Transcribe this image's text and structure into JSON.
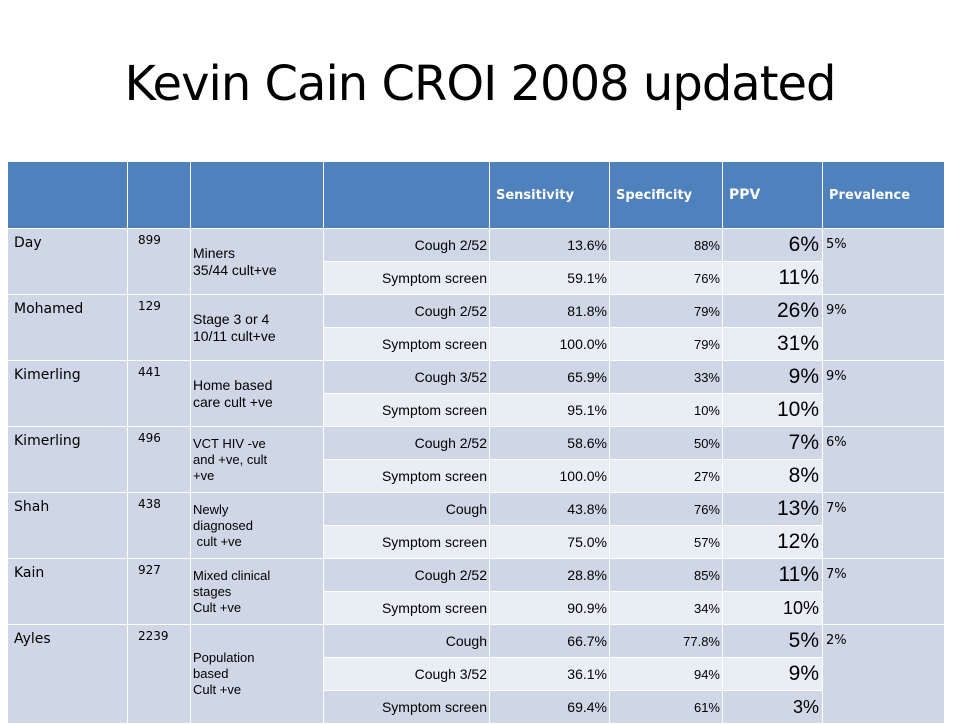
{
  "title": "Kevin Cain CROI 2008 updated",
  "headers": {
    "sensitivity": "Sensitivity",
    "specificity": "Specificity",
    "ppv": "PPV",
    "prevalence": "Prevalence"
  },
  "studies": [
    {
      "name": "Day",
      "n": "899",
      "population": [
        "Miners",
        "35/44 cult+ve"
      ],
      "prevalence": "5%",
      "rows": [
        {
          "test": "Cough 2/52",
          "sensitivity": "13.6%",
          "specificity": "88%",
          "ppv": "6%"
        },
        {
          "test": "Symptom screen",
          "sensitivity": "59.1%",
          "specificity": "76%",
          "ppv": "11%"
        }
      ]
    },
    {
      "name": "Mohamed",
      "n": "129",
      "population": [
        "Stage 3 or 4",
        "10/11 cult+ve"
      ],
      "prevalence": "9%",
      "rows": [
        {
          "test": "Cough 2/52",
          "sensitivity": "81.8%",
          "specificity": "79%",
          "ppv": "26%"
        },
        {
          "test": "Symptom screen",
          "sensitivity": "100.0%",
          "specificity": "79%",
          "ppv": "31%"
        }
      ]
    },
    {
      "name": "Kimerling",
      "n": "441",
      "population": [
        "Home based",
        "care cult +ve"
      ],
      "prevalence": "9%",
      "rows": [
        {
          "test": "Cough 3/52",
          "sensitivity": "65.9%",
          "specificity": "33%",
          "ppv": "9%"
        },
        {
          "test": "Symptom screen",
          "sensitivity": "95.1%",
          "specificity": "10%",
          "ppv": "10%"
        }
      ]
    },
    {
      "name": "Kimerling",
      "n": "496",
      "population": [
        "VCT HIV -ve",
        "and +ve, cult",
        "+ve"
      ],
      "prevalence": "6%",
      "rows": [
        {
          "test": "Cough 2/52",
          "sensitivity": "58.6%",
          "specificity": "50%",
          "ppv": "7%"
        },
        {
          "test": "Symptom screen",
          "sensitivity": "100.0%",
          "specificity": "27%",
          "ppv": "8%"
        }
      ]
    },
    {
      "name": "Shah",
      "n": "438",
      "population": [
        "Newly",
        "diagnosed",
        " cult +ve"
      ],
      "prevalence": "7%",
      "rows": [
        {
          "test": "Cough",
          "sensitivity": "43.8%",
          "specificity": "76%",
          "ppv": "13%"
        },
        {
          "test": "Symptom screen",
          "sensitivity": "75.0%",
          "specificity": "57%",
          "ppv": "12%"
        }
      ]
    },
    {
      "name": "Kain",
      "n": "927",
      "population": [
        "Mixed clinical",
        "stages",
        "Cult +ve"
      ],
      "prevalence": "7%",
      "rows": [
        {
          "test": "Cough 2/52",
          "sensitivity": "28.8%",
          "specificity": "85%",
          "ppv": "11%"
        },
        {
          "test": "Symptom screen",
          "sensitivity": "90.9%",
          "specificity": "34%",
          "ppv": "10%"
        }
      ]
    },
    {
      "name": "Ayles",
      "n": "2239",
      "population": [
        "Population",
        "based",
        "Cult +ve"
      ],
      "prevalence": "2%",
      "rows": [
        {
          "test": "Cough",
          "sensitivity": "66.7%",
          "specificity": "77.8%",
          "ppv": "5%"
        },
        {
          "test": "Cough 3/52",
          "sensitivity": "36.1%",
          "specificity": "94%",
          "ppv": "9%"
        },
        {
          "test": "Symptom screen",
          "sensitivity": "69.4%",
          "specificity": "61%",
          "ppv": "3%"
        }
      ]
    }
  ]
}
